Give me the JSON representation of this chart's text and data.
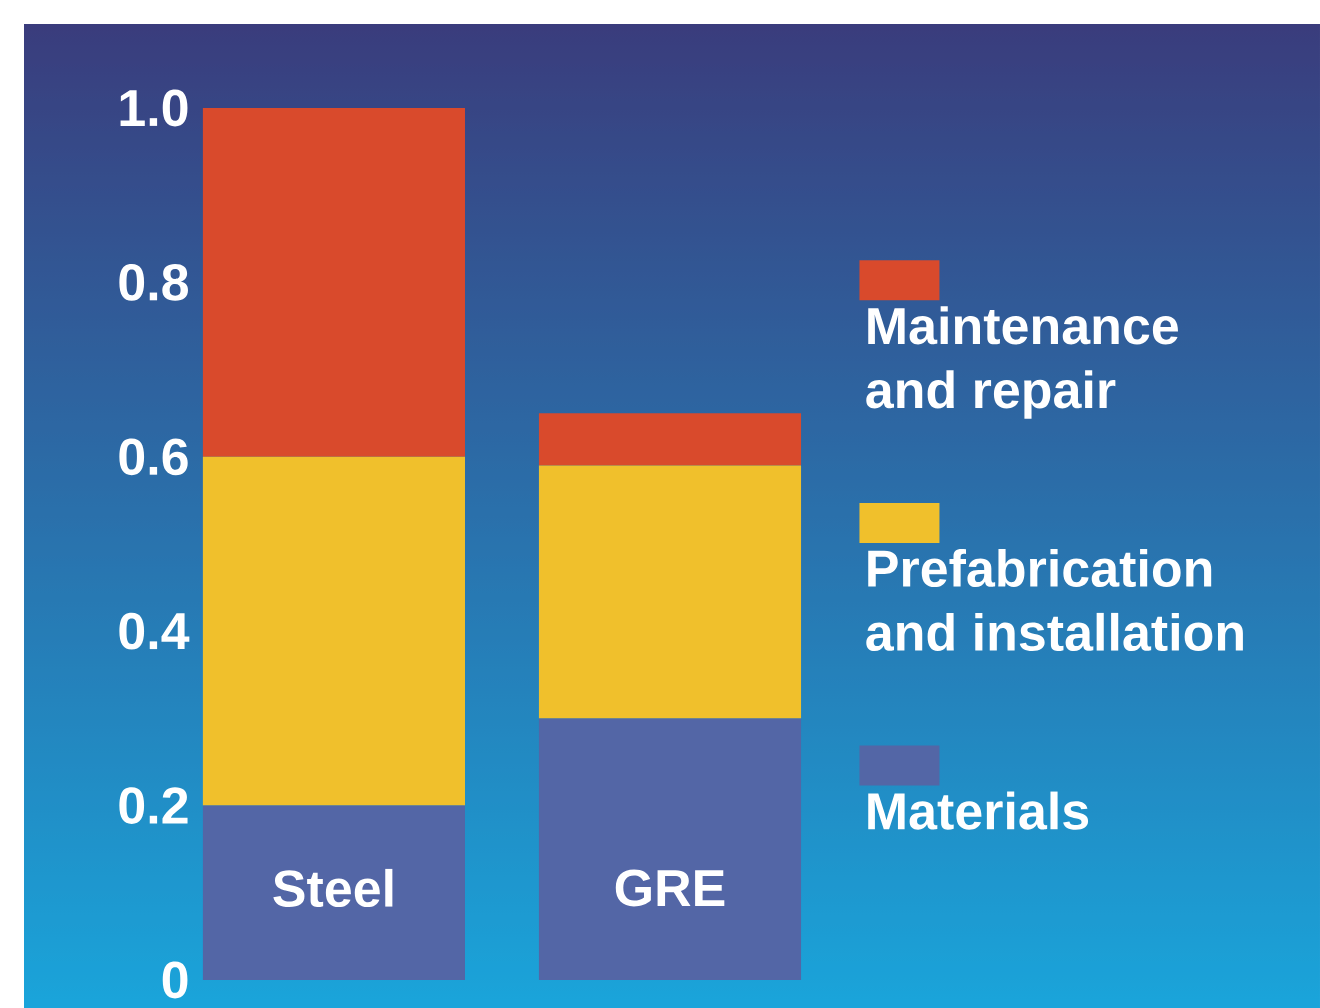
{
  "chart_data": {
    "type": "bar",
    "stacked": true,
    "categories": [
      "Steel",
      "GRE"
    ],
    "series": [
      {
        "name": "Materials",
        "color": "#5366a6",
        "values": [
          0.2,
          0.3
        ]
      },
      {
        "name": "Prefabrication and installation",
        "color": "#f0c02c",
        "values": [
          0.4,
          0.29
        ]
      },
      {
        "name": "Maintenance and repair",
        "color": "#d94a2c",
        "values": [
          0.4,
          0.06
        ]
      }
    ],
    "ylim": [
      0,
      1
    ],
    "yticks": [
      0,
      0.2,
      0.4,
      0.6,
      0.8,
      {
        "value": 1,
        "label": "1.0"
      }
    ],
    "legend": "right"
  }
}
